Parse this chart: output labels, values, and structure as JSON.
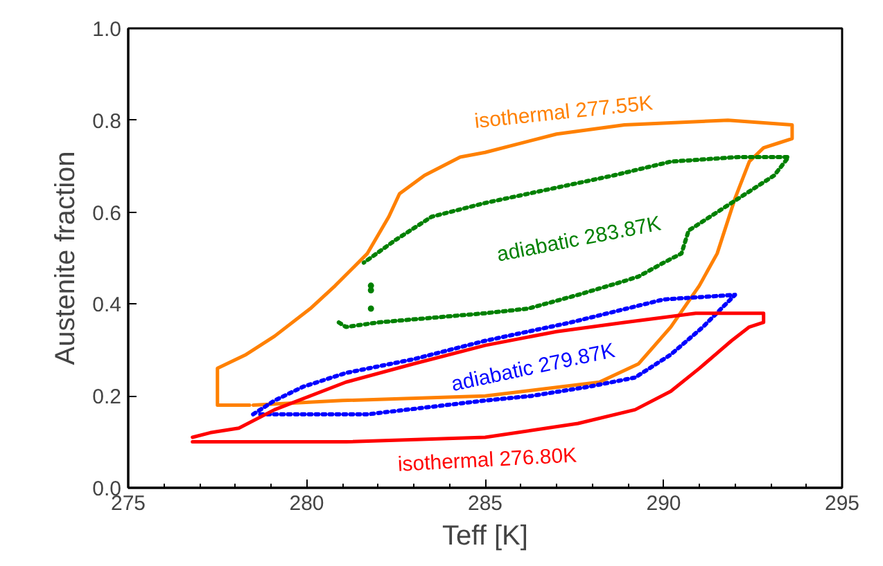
{
  "chart_data": {
    "type": "line",
    "xlabel": "Teff [K]",
    "ylabel": "Austenite fraction",
    "xlim": [
      275,
      295
    ],
    "ylim": [
      0,
      1
    ],
    "xticks": [
      275,
      {
        "value": 276,
        "label": null
      },
      {
        "value": 277,
        "label": null
      },
      {
        "value": 278,
        "label": null
      },
      {
        "value": 279,
        "label": null
      },
      280,
      {
        "value": 281,
        "label": null
      },
      {
        "value": 282,
        "label": null
      },
      {
        "value": 283,
        "label": null
      },
      {
        "value": 284,
        "label": null
      },
      285,
      {
        "value": 286,
        "label": null
      },
      {
        "value": 287,
        "label": null
      },
      {
        "value": 288,
        "label": null
      },
      {
        "value": 289,
        "label": null
      },
      290,
      {
        "value": 291,
        "label": null
      },
      {
        "value": 292,
        "label": null
      },
      {
        "value": 293,
        "label": null
      },
      {
        "value": 294,
        "label": null
      },
      295
    ],
    "yticks": [
      {
        "value": 0,
        "label": "0.0"
      },
      0.2,
      0.4,
      0.6,
      0.8,
      {
        "value": 1,
        "label": "1.0"
      }
    ],
    "grid": false,
    "series": [
      {
        "color": "#ff8000",
        "line_style": "solid",
        "x": [
          278.5,
          281.0,
          285.0,
          288.2,
          289.3,
          290.2,
          291.0,
          291.5,
          292.0,
          292.4,
          292.8,
          293.2,
          293.6,
          293.6,
          291.8,
          288.9,
          287.0,
          285.0,
          284.3,
          283.3,
          282.6,
          282.3,
          281.7,
          280.8,
          280.1,
          279.1,
          278.3,
          277.5,
          277.5,
          278.4
        ],
        "values": [
          0.18,
          0.19,
          0.2,
          0.23,
          0.27,
          0.35,
          0.44,
          0.51,
          0.63,
          0.71,
          0.74,
          0.75,
          0.76,
          0.79,
          0.8,
          0.79,
          0.77,
          0.73,
          0.72,
          0.68,
          0.64,
          0.59,
          0.51,
          0.44,
          0.39,
          0.33,
          0.29,
          0.26,
          0.18,
          0.18
        ]
      },
      {
        "color": "#008000",
        "line_style": "dotted",
        "x": [
          280.9,
          281.1,
          282.0,
          283.5,
          285.0,
          286.2,
          287.6,
          288.9,
          289.3,
          290.0,
          290.5,
          290.7,
          291.5,
          292.3,
          293.1,
          293.5,
          292.1,
          290.2,
          288.6,
          286.2,
          285.0,
          283.5,
          282.5,
          281.6
        ],
        "values": [
          0.36,
          0.35,
          0.36,
          0.37,
          0.38,
          0.39,
          0.42,
          0.45,
          0.46,
          0.49,
          0.51,
          0.56,
          0.6,
          0.64,
          0.68,
          0.72,
          0.72,
          0.71,
          0.68,
          0.64,
          0.62,
          0.59,
          0.54,
          0.49
        ]
      },
      {
        "type": "scatter",
        "color": "#008000",
        "marker": "circle",
        "x": [
          281.8,
          281.8,
          281.8
        ],
        "values": [
          0.44,
          0.43,
          0.39
        ]
      },
      {
        "color": "#0000ff",
        "line_style": "dotted",
        "x": [
          278.5,
          279.1,
          279.9,
          281.1,
          283.0,
          285.0,
          287.4,
          290.0,
          292.0,
          291.1,
          290.2,
          289.2,
          287.9,
          286.3,
          285.0,
          281.7,
          279.1,
          278.6
        ],
        "values": [
          0.16,
          0.19,
          0.22,
          0.25,
          0.28,
          0.32,
          0.36,
          0.41,
          0.42,
          0.35,
          0.29,
          0.24,
          0.22,
          0.2,
          0.19,
          0.16,
          0.16,
          0.16
        ]
      },
      {
        "color": "#ff0000",
        "line_style": "solid",
        "x": [
          276.8,
          281.1,
          285.0,
          287.6,
          289.2,
          290.2,
          291.0,
          291.9,
          292.4,
          292.8,
          292.8,
          290.9,
          288.9,
          287.0,
          285.0,
          283.0,
          281.1,
          279.1,
          278.1,
          277.3,
          276.8
        ],
        "values": [
          0.1,
          0.1,
          0.11,
          0.14,
          0.17,
          0.21,
          0.26,
          0.32,
          0.35,
          0.36,
          0.38,
          0.38,
          0.36,
          0.34,
          0.31,
          0.27,
          0.23,
          0.17,
          0.13,
          0.12,
          0.11
        ]
      }
    ],
    "annotations": [
      "isothermal 277.55K",
      "adiabatic 283.87K",
      "adiabatic 279.87K",
      "isothermal 276.80K"
    ]
  }
}
